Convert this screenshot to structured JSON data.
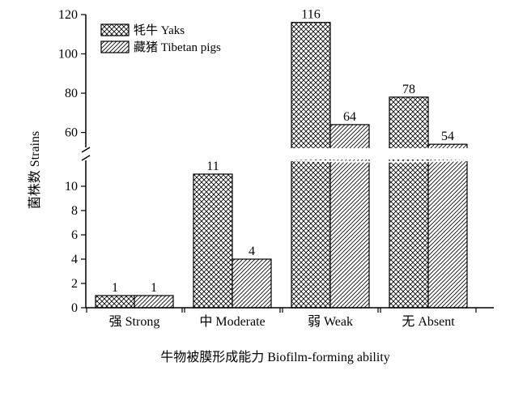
{
  "chart_data": {
    "type": "bar",
    "categories": [
      "强 Strong",
      "中 Moderate",
      "弱 Weak",
      "无 Absent"
    ],
    "series": [
      {
        "name": "牦牛 Yaks",
        "values": [
          1,
          11,
          116,
          78
        ],
        "pattern": "crosshatch"
      },
      {
        "name": "藏猪 Tibetan pigs",
        "values": [
          1,
          4,
          64,
          54
        ],
        "pattern": "diagonal"
      }
    ],
    "xlabel": "牛物被膜形成能力 Biofilm-forming ability",
    "ylabel": "菌株数 Strains",
    "ylim": [
      0,
      120
    ],
    "axis_break": {
      "lower": [
        0,
        12
      ],
      "upper": [
        52,
        120
      ]
    },
    "lower_ticks": [
      "0",
      "2",
      "4",
      "6",
      "8",
      "10"
    ],
    "upper_ticks": [
      "60",
      "80",
      "100",
      "120"
    ],
    "grid": false,
    "legend_position": "top-left",
    "colors": {
      "ink": "#000000",
      "bar_fill": "#ffffff"
    }
  }
}
